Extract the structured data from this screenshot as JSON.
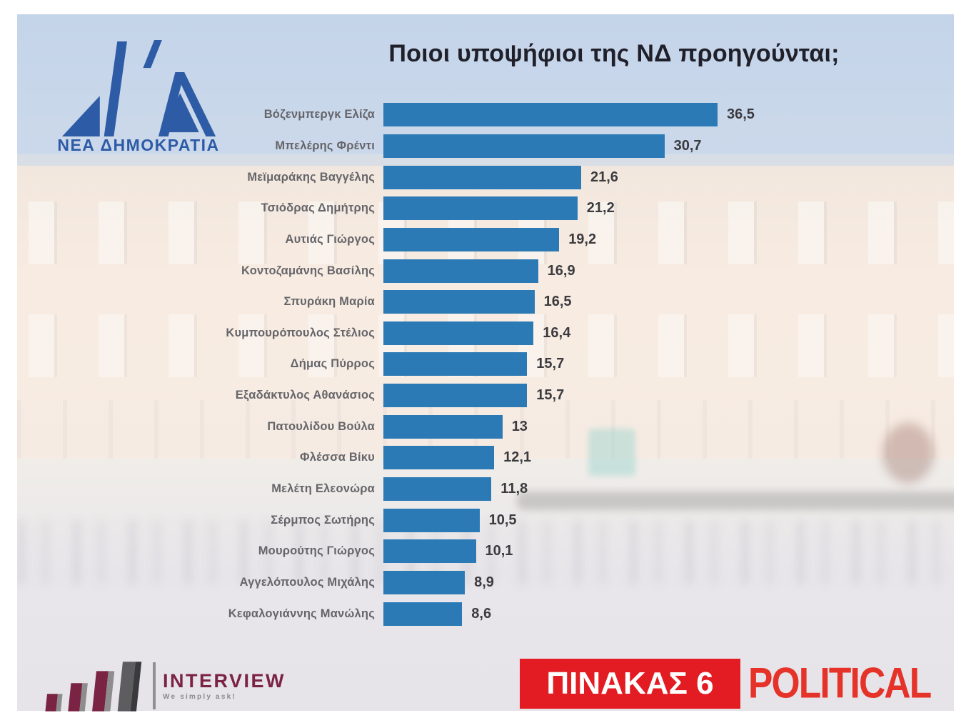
{
  "header": {
    "title": "Ποιοι υποψήφιοι της ΝΔ προηγούνται;"
  },
  "nd_logo": {
    "name": "ΝΕΑ ΔΗΜΟΚΡΑΤΙΑ",
    "color": "#2d5ba5"
  },
  "chart_data": {
    "type": "bar",
    "orientation": "horizontal",
    "title": "Ποιοι υποψήφιοι της ΝΔ προηγούνται;",
    "categories": [
      "Βόζενμπεργκ Ελίζα",
      "Μπελέρης Φρέντι",
      "Μεϊμαράκης Βαγγέλης",
      "Τσιόδρας Δημήτρης",
      "Αυτιάς Γιώργος",
      "Κοντοζαμάνης Βασίλης",
      "Σπυράκη Μαρία",
      "Κυμπουρόπουλος Στέλιος",
      "Δήμας Πύρρος",
      "Εξαδάκτυλος Αθανάσιος",
      "Πατουλίδου Βούλα",
      "Φλέσσα Βίκυ",
      "Μελέτη Ελεονώρα",
      "Σέρμπος Σωτήρης",
      "Μουρούτης Γιώργος",
      "Αγγελόπουλος Μιχάλης",
      "Κεφαλογιάννης Μανώλης"
    ],
    "values": [
      36.5,
      30.7,
      21.6,
      21.2,
      19.2,
      16.9,
      16.5,
      16.4,
      15.7,
      15.7,
      13,
      12.1,
      11.8,
      10.5,
      10.1,
      8.9,
      8.6
    ],
    "value_labels": [
      "36,5",
      "30,7",
      "21,6",
      "21,2",
      "19,2",
      "16,9",
      "16,5",
      "16,4",
      "15,7",
      "15,7",
      "13",
      "12,1",
      "11,8",
      "10,5",
      "10,1",
      "8,9",
      "8,6"
    ],
    "bar_color": "#2b7ab5",
    "xlim": [
      0,
      38
    ],
    "grid": false,
    "legend": false
  },
  "footer": {
    "interview": {
      "brand": "INTERVIEW",
      "tagline": "We simply ask!"
    },
    "table_badge": {
      "label": "ΠΙΝΑΚΑΣ 6",
      "bg": "#e31b22",
      "text_color": "#ffffff"
    },
    "political": {
      "label": "POLITICAL",
      "color": "#e5332a"
    }
  },
  "colors": {
    "sky": "#c6d5e9",
    "building": "#f8ece2",
    "ground": "#e8e6ea",
    "bar": "#2b7ab5",
    "category_label": "#65656a",
    "value_label": "#3b3b3f",
    "title": "#20202a"
  }
}
